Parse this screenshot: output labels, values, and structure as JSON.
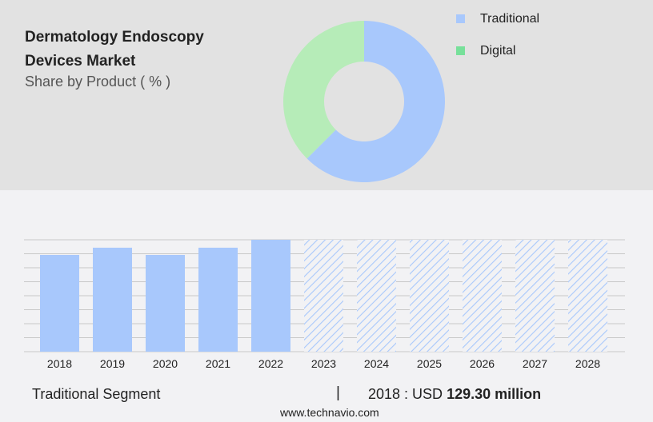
{
  "header": {
    "title": "Dermatology Endoscopy Devices Market",
    "subtitle": "Share by Product ( % )"
  },
  "footer": {
    "segment": "Traditional Segment",
    "separator": "|",
    "stat_prefix": "2018 : USD",
    "stat_value": "129.30 million",
    "site": "www.technavio.com"
  },
  "chart_data": [
    {
      "type": "pie",
      "donut": true,
      "labels": [
        "Traditional",
        "Digital"
      ],
      "values": [
        62.5,
        37.5
      ],
      "colors": [
        "#a8c8fc",
        "#b6ecb8"
      ],
      "legend_colors": [
        "#a8c8fc",
        "#77e09a"
      ],
      "legend": "top-right"
    },
    {
      "type": "bar",
      "categories": [
        "2018",
        "2019",
        "2020",
        "2021",
        "2022",
        "2023",
        "2024",
        "2025",
        "2026",
        "2027",
        "2028"
      ],
      "values": [
        129.3,
        139,
        129.3,
        139,
        149.6,
        null,
        null,
        null,
        null,
        null,
        null
      ],
      "forecast": [
        false,
        false,
        false,
        false,
        false,
        true,
        true,
        true,
        true,
        true,
        true
      ],
      "ylim": [
        0,
        149.6
      ],
      "grid": true,
      "color": "#a8c8fc"
    }
  ]
}
